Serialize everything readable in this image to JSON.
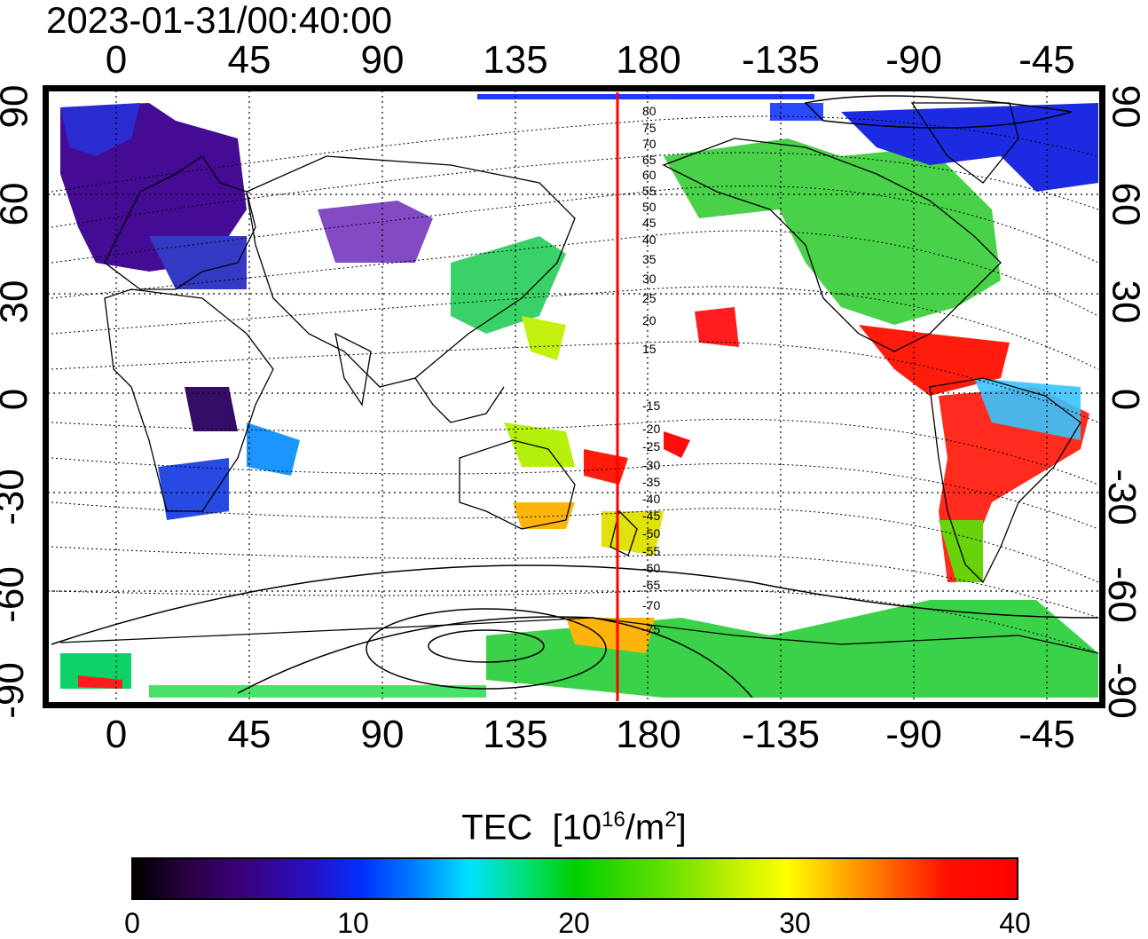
{
  "timestamp": "2023-01-31/00:40:00",
  "axes": {
    "lon_ticks": [
      "0",
      "45",
      "90",
      "135",
      "180",
      "-135",
      "-90",
      "-45"
    ],
    "lat_ticks": [
      "90",
      "60",
      "30",
      "0",
      "-30",
      "-60",
      "-90"
    ]
  },
  "contour_labels": [
    "80",
    "75",
    "70",
    "65",
    "60",
    "55",
    "50",
    "45",
    "40",
    "35",
    "30",
    "25",
    "20",
    "15",
    "-15",
    "-20",
    "-25",
    "-30",
    "-35",
    "-40",
    "-45",
    "-50",
    "-55",
    "-60",
    "-65",
    "-70",
    "-75"
  ],
  "colorbar": {
    "title_main": "TEC",
    "title_unit_base": "[10",
    "title_unit_exp": "16",
    "title_unit_mid": "/m",
    "title_unit_exp2": "2",
    "title_unit_end": "]",
    "ticks": [
      "0",
      "10",
      "20",
      "30",
      "40"
    ],
    "colors": [
      "#000000",
      "#3a007a",
      "#0030ff",
      "#00e0ff",
      "#00d000",
      "#ffff00",
      "#ff0000"
    ]
  },
  "marker_line": {
    "color": "#ff0000",
    "longitude": 170
  }
}
